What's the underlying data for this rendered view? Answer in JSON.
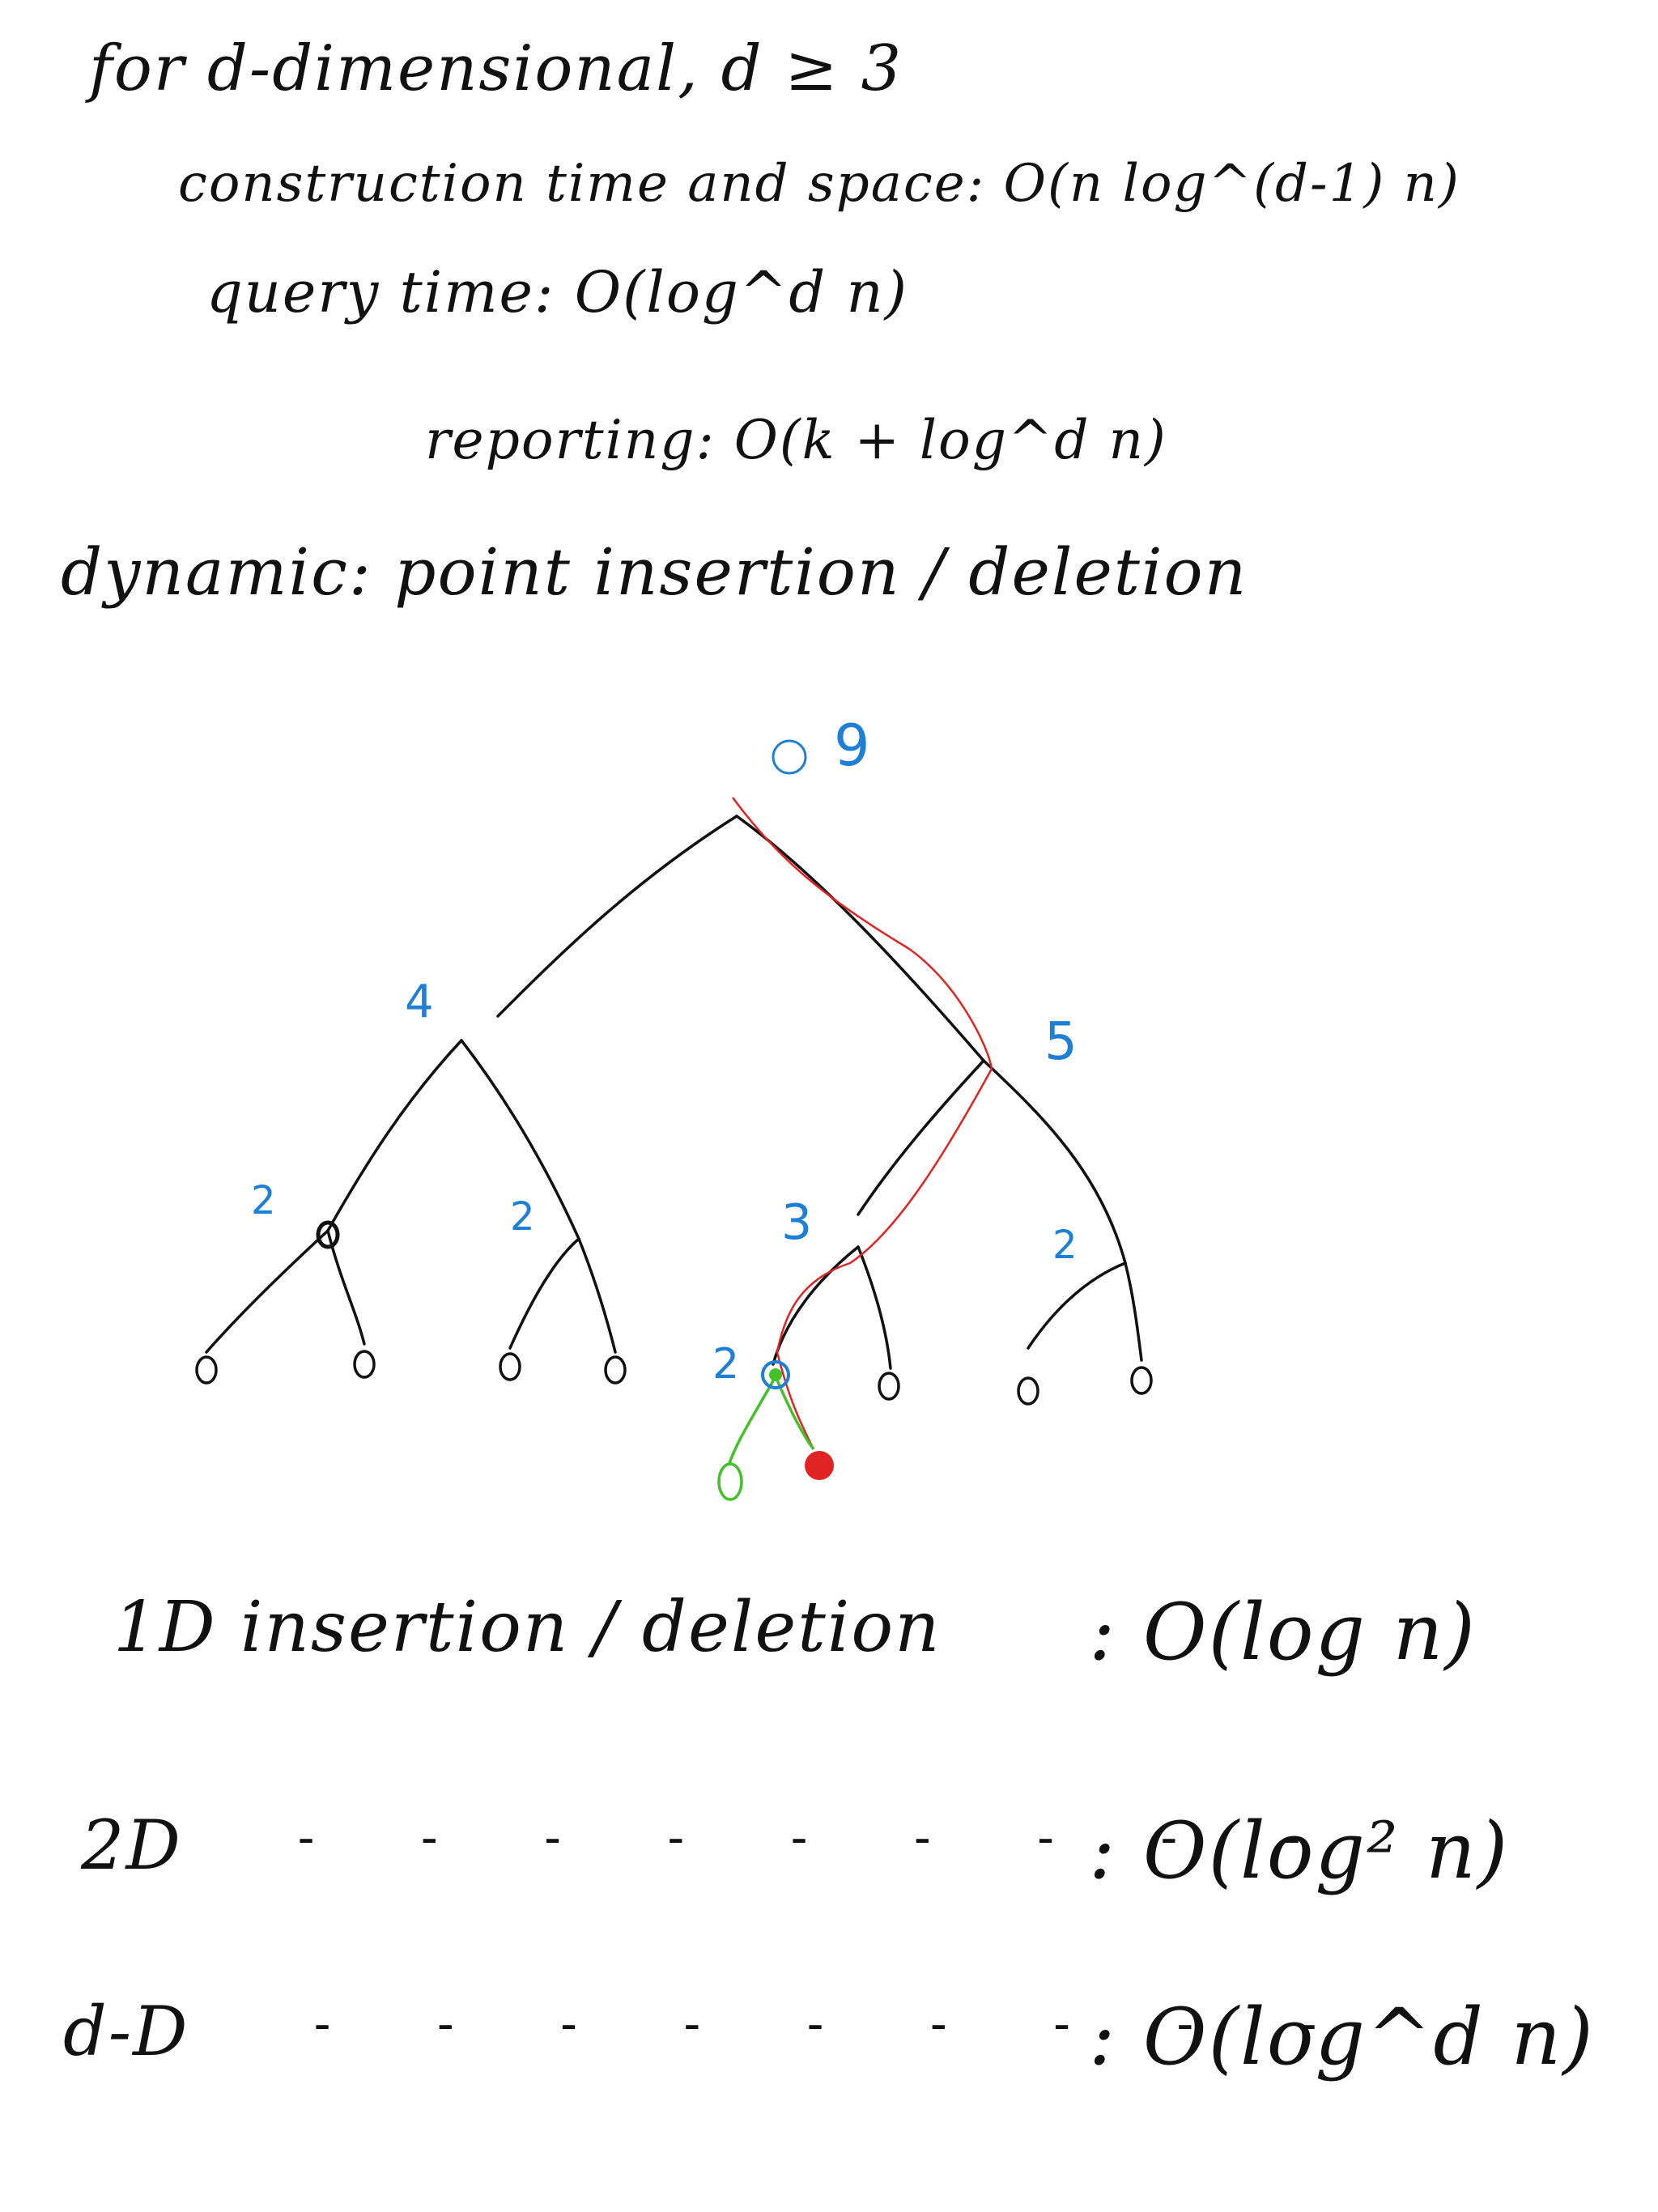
{
  "notes": {
    "line1": "for d-dimensional, d ≥ 3",
    "line2": "construction time and space: O(n log^(d-1) n)",
    "line3": "query time: O(log^d n)",
    "line4": "reporting: O(k + log^d n)",
    "line5": "dynamic: point insertion / deletion"
  },
  "tree": {
    "root_label": "9",
    "left_child_label": "4",
    "right_child_label": "5",
    "level2_labels": [
      "2",
      "2",
      "3",
      "2"
    ],
    "inner_leaf_label": "2",
    "leaf_labels": [
      "0",
      "0",
      "0",
      "0",
      "0",
      "0",
      "0",
      "0",
      "0"
    ]
  },
  "summary": {
    "row1_label": "1D insertion / deletion",
    "row1_value": ": O(log n)",
    "row2_label": "2D",
    "row2_value": ": O(log² n)",
    "row3_label": "d-D",
    "row3_value": ": O(log^d n)"
  },
  "colors": {
    "ink": "#111111",
    "blue": "#1e7fd6",
    "red": "#e02424",
    "green": "#44c02a"
  }
}
